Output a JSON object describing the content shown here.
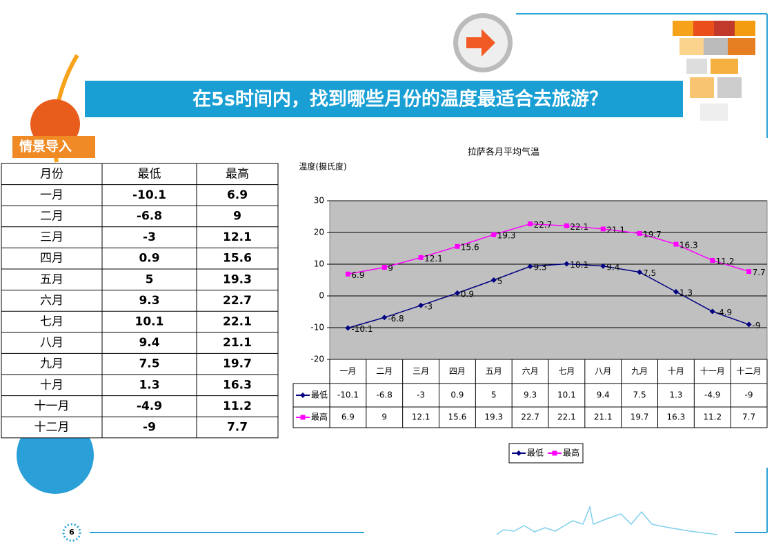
{
  "slide": {
    "title": "在5s时间内，找到哪些月份的温度最适合去旅游？",
    "section": "情景导入",
    "page": "6"
  },
  "table": {
    "header": [
      "月份"
    ]
  },
  "chart_data": {
    "type": "line",
    "title": "拉萨各月平均气温",
    "y_label": "温度(摄氏度)",
    "categories": [
      "一月",
      "二月",
      "三月",
      "四月",
      "五月",
      "六月",
      "七月",
      "八月",
      "九月",
      "十月",
      "十一月",
      "十二月"
    ],
    "series": [
      {
        "name": "最低",
        "color": "#000080",
        "marker": "diamond",
        "values": [
          -10.1,
          -6.8,
          -3,
          0.9,
          5,
          9.3,
          10.1,
          9.4,
          7.5,
          1.3,
          -4.9,
          -9
        ]
      },
      {
        "name": "最高",
        "color": "#ff00ff",
        "marker": "square",
        "values": [
          6.9,
          9,
          12.1,
          15.6,
          19.3,
          22.7,
          22.1,
          21.1,
          19.7,
          16.3,
          11.2,
          7.7
        ]
      }
    ],
    "ylim": [
      -20,
      30
    ],
    "yticks": [
      -20,
      -10,
      0,
      10,
      20,
      30
    ],
    "grid": true
  }
}
